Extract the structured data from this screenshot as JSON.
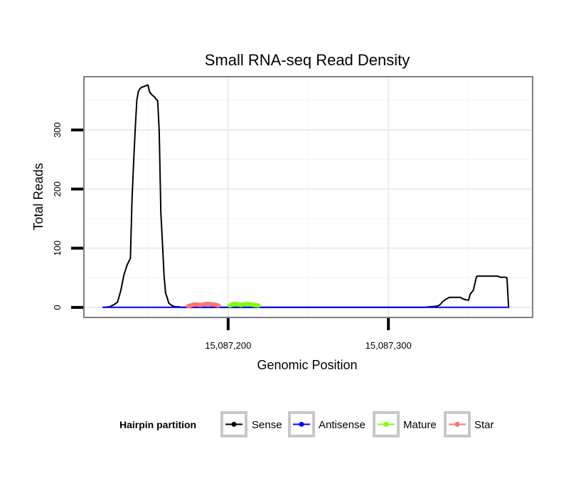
{
  "chart_data": {
    "type": "line",
    "title": "Small RNA-seq Read Density",
    "xlabel": "Genomic Position",
    "ylabel": "Total Reads",
    "xlim": [
      15087110,
      15087390
    ],
    "ylim": [
      -17,
      390
    ],
    "x_ticks": [
      {
        "value": 15087200,
        "label": "15,087,200"
      },
      {
        "value": 15087300,
        "label": "15,087,300"
      }
    ],
    "y_ticks": [
      {
        "value": 0,
        "label": "0"
      },
      {
        "value": 100,
        "label": "100"
      },
      {
        "value": 200,
        "label": "200"
      },
      {
        "value": 300,
        "label": "300"
      }
    ],
    "grid": true,
    "legend_position": "bottom",
    "legend_title": "Hairpin partition",
    "series": [
      {
        "name": "Sense",
        "color": "#000000",
        "x": [
          15087122,
          15087126,
          15087129,
          15087131,
          15087133,
          15087135,
          15087137,
          15087139,
          15087140,
          15087141,
          15087142,
          15087143,
          15087144,
          15087145,
          15087146,
          15087147,
          15087148,
          15087150,
          15087151,
          15087152,
          15087153,
          15087154,
          15087155,
          15087156,
          15087157,
          15087158,
          15087159,
          15087160,
          15087161,
          15087162,
          15087163,
          15087164,
          15087165,
          15087166,
          15087167,
          15087169,
          15087171,
          15087173,
          15087300,
          15087322,
          15087330,
          15087332,
          15087334,
          15087336,
          15087338,
          15087345,
          15087346,
          15087348,
          15087350,
          15087351,
          15087353,
          15087355,
          15087356,
          15087357,
          15087358,
          15087368,
          15087370,
          15087373,
          15087374,
          15087375
        ],
        "y": [
          0,
          1,
          5,
          9,
          28,
          55,
          72,
          83,
          180,
          245,
          300,
          350,
          365,
          370,
          372,
          373,
          374,
          376,
          364,
          361,
          358,
          356,
          352,
          350,
          298,
          160,
          110,
          54,
          24,
          16,
          7,
          5,
          3,
          2,
          1,
          1,
          0,
          0,
          0,
          0,
          2,
          4,
          10,
          14,
          17,
          17,
          15,
          13,
          12,
          22,
          29,
          52,
          53,
          53,
          53,
          53,
          51,
          51,
          50,
          0
        ]
      },
      {
        "name": "Antisense",
        "color": "#0000FF",
        "x": [
          15087122,
          15087375
        ],
        "y": [
          0,
          0
        ]
      },
      {
        "name": "Mature",
        "color": "#7FFF00",
        "x": [
          15087201,
          15087204,
          15087208,
          15087212,
          15087216,
          15087219
        ],
        "y": [
          3,
          6,
          4,
          6,
          4,
          3
        ]
      },
      {
        "name": "Star",
        "color": "#F8766D",
        "x": [
          15087175,
          15087179,
          15087183,
          15087187,
          15087191,
          15087194
        ],
        "y": [
          2,
          5,
          4,
          6,
          5,
          3
        ]
      }
    ]
  }
}
